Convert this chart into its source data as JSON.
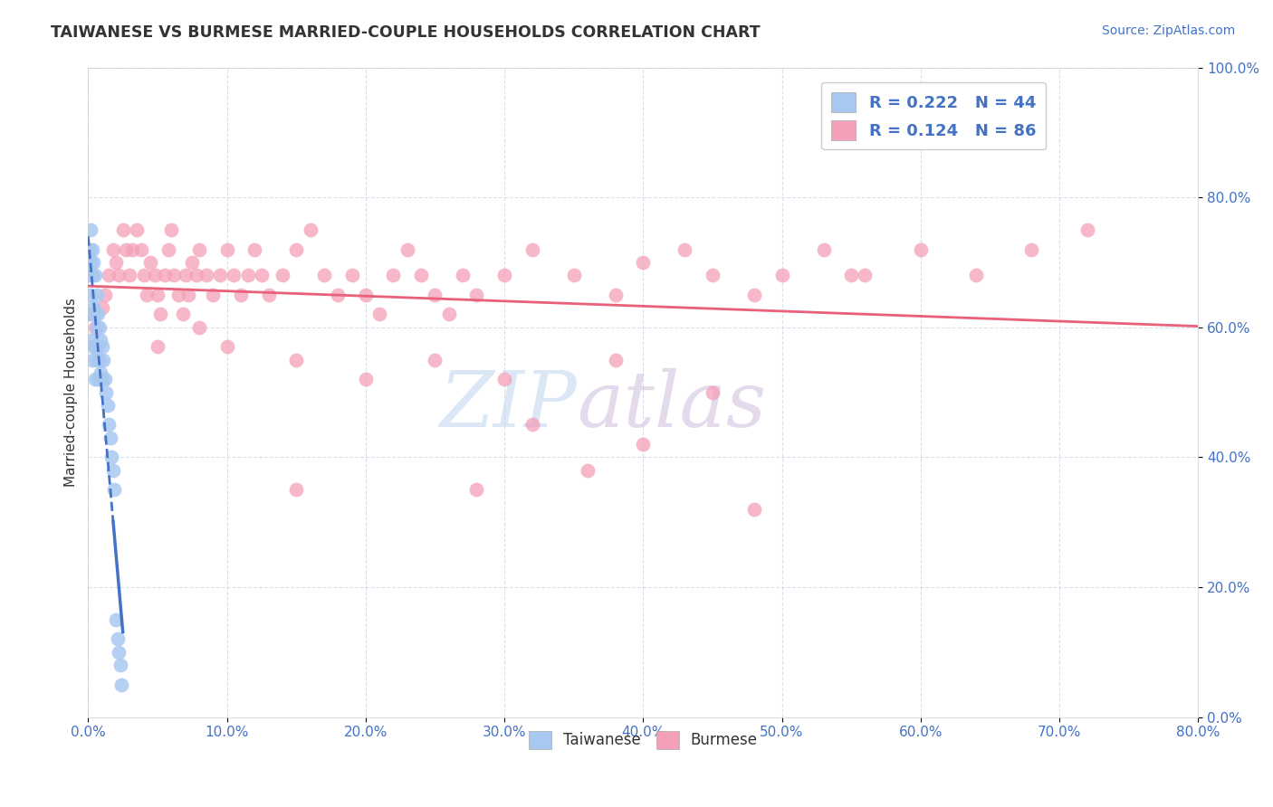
{
  "title": "TAIWANESE VS BURMESE MARRIED-COUPLE HOUSEHOLDS CORRELATION CHART",
  "source": "Source: ZipAtlas.com",
  "ylabel": "Married-couple Households",
  "xlim": [
    0.0,
    0.8
  ],
  "ylim": [
    0.0,
    1.0
  ],
  "xticks": [
    0.0,
    0.1,
    0.2,
    0.3,
    0.4,
    0.5,
    0.6,
    0.7,
    0.8
  ],
  "xticklabels": [
    "0.0%",
    "10.0%",
    "20.0%",
    "30.0%",
    "40.0%",
    "50.0%",
    "60.0%",
    "70.0%",
    "80.0%"
  ],
  "yticks": [
    0.0,
    0.2,
    0.4,
    0.6,
    0.8,
    1.0
  ],
  "yticklabels": [
    "0.0%",
    "20.0%",
    "40.0%",
    "60.0%",
    "80.0%",
    "100.0%"
  ],
  "taiwanese_color": "#a8c8f0",
  "burmese_color": "#f4a0b8",
  "taiwanese_line_color": "#4472c4",
  "burmese_line_color": "#e8607a",
  "watermark_text": "ZIP",
  "watermark_text2": "atlas",
  "watermark_color1": "#c8d8f0",
  "watermark_color2": "#d0c0d8",
  "legend_R1": "0.222",
  "legend_N1": "44",
  "legend_R2": "0.124",
  "legend_N2": "86",
  "tick_color": "#4472c4",
  "title_color": "#333333",
  "source_color": "#4472c4",
  "ylabel_color": "#333333",
  "tw_x": [
    0.001,
    0.001,
    0.001,
    0.002,
    0.002,
    0.002,
    0.002,
    0.003,
    0.003,
    0.003,
    0.003,
    0.004,
    0.004,
    0.004,
    0.005,
    0.005,
    0.005,
    0.005,
    0.006,
    0.006,
    0.006,
    0.007,
    0.007,
    0.007,
    0.008,
    0.008,
    0.009,
    0.009,
    0.01,
    0.01,
    0.011,
    0.012,
    0.013,
    0.014,
    0.015,
    0.016,
    0.017,
    0.018,
    0.019,
    0.02,
    0.021,
    0.022,
    0.023,
    0.024
  ],
  "tw_y": [
    0.72,
    0.68,
    0.62,
    0.75,
    0.7,
    0.65,
    0.58,
    0.72,
    0.68,
    0.62,
    0.55,
    0.7,
    0.63,
    0.57,
    0.68,
    0.62,
    0.57,
    0.52,
    0.65,
    0.6,
    0.55,
    0.62,
    0.57,
    0.52,
    0.6,
    0.55,
    0.58,
    0.53,
    0.57,
    0.52,
    0.55,
    0.52,
    0.5,
    0.48,
    0.45,
    0.43,
    0.4,
    0.38,
    0.35,
    0.15,
    0.12,
    0.1,
    0.08,
    0.05
  ],
  "bur_x": [
    0.005,
    0.01,
    0.012,
    0.015,
    0.018,
    0.02,
    0.022,
    0.025,
    0.027,
    0.03,
    0.032,
    0.035,
    0.038,
    0.04,
    0.042,
    0.045,
    0.048,
    0.05,
    0.052,
    0.055,
    0.058,
    0.06,
    0.062,
    0.065,
    0.068,
    0.07,
    0.072,
    0.075,
    0.078,
    0.08,
    0.085,
    0.09,
    0.095,
    0.1,
    0.105,
    0.11,
    0.115,
    0.12,
    0.125,
    0.13,
    0.14,
    0.15,
    0.16,
    0.17,
    0.18,
    0.19,
    0.2,
    0.21,
    0.22,
    0.23,
    0.24,
    0.25,
    0.26,
    0.27,
    0.28,
    0.3,
    0.32,
    0.35,
    0.38,
    0.4,
    0.43,
    0.45,
    0.48,
    0.5,
    0.53,
    0.56,
    0.6,
    0.64,
    0.68,
    0.72,
    0.05,
    0.08,
    0.1,
    0.15,
    0.2,
    0.25,
    0.3,
    0.38,
    0.45,
    0.55,
    0.32,
    0.4,
    0.15,
    0.28,
    0.36,
    0.48
  ],
  "bur_y": [
    0.6,
    0.63,
    0.65,
    0.68,
    0.72,
    0.7,
    0.68,
    0.75,
    0.72,
    0.68,
    0.72,
    0.75,
    0.72,
    0.68,
    0.65,
    0.7,
    0.68,
    0.65,
    0.62,
    0.68,
    0.72,
    0.75,
    0.68,
    0.65,
    0.62,
    0.68,
    0.65,
    0.7,
    0.68,
    0.72,
    0.68,
    0.65,
    0.68,
    0.72,
    0.68,
    0.65,
    0.68,
    0.72,
    0.68,
    0.65,
    0.68,
    0.72,
    0.75,
    0.68,
    0.65,
    0.68,
    0.65,
    0.62,
    0.68,
    0.72,
    0.68,
    0.65,
    0.62,
    0.68,
    0.65,
    0.68,
    0.72,
    0.68,
    0.65,
    0.7,
    0.72,
    0.68,
    0.65,
    0.68,
    0.72,
    0.68,
    0.72,
    0.68,
    0.72,
    0.75,
    0.57,
    0.6,
    0.57,
    0.55,
    0.52,
    0.55,
    0.52,
    0.55,
    0.5,
    0.68,
    0.45,
    0.42,
    0.35,
    0.35,
    0.38,
    0.32
  ]
}
